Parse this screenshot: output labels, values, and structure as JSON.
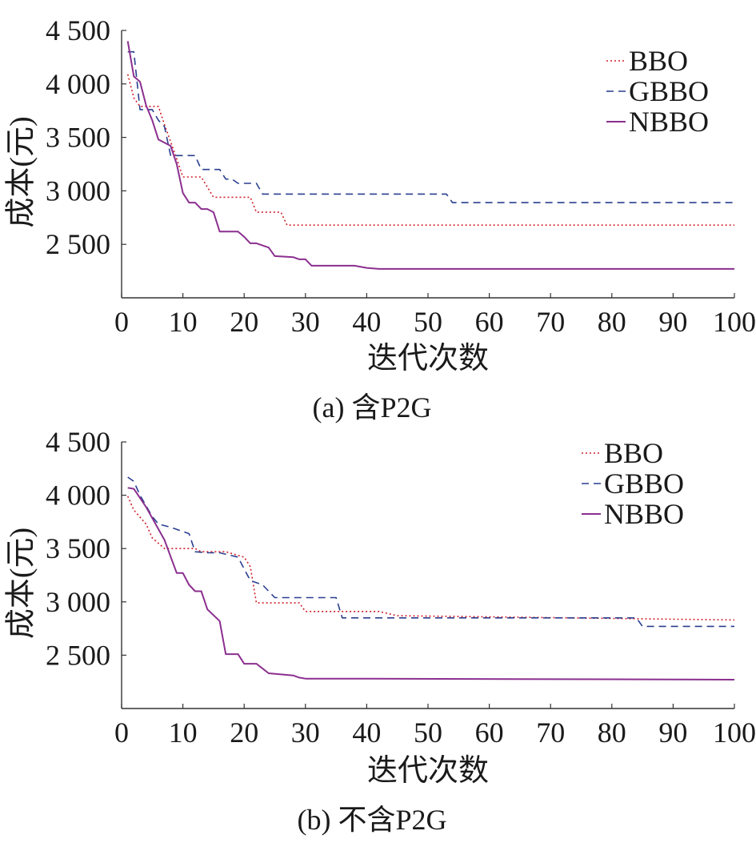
{
  "chart_data": [
    {
      "type": "line",
      "caption": "(a) 含P2G",
      "xlabel": "迭代次数",
      "ylabel": "成本(元)",
      "xlim": [
        0,
        100
      ],
      "ylim": [
        2000,
        4500
      ],
      "xticks": [
        0,
        10,
        20,
        30,
        40,
        50,
        60,
        70,
        80,
        90,
        100
      ],
      "xtick_labels": [
        "0",
        "10",
        "20",
        "30",
        "40",
        "50",
        "60",
        "70",
        "80",
        "90",
        "100"
      ],
      "yticks": [
        2500,
        3000,
        3500,
        4000,
        4500
      ],
      "ytick_labels": [
        "2 500",
        "3 000",
        "3 500",
        "4 000",
        "4 500"
      ],
      "legend_position": "top-right",
      "series": [
        {
          "name": "BBO",
          "color": "#d0202a",
          "dash": "dotted",
          "points": [
            [
              1,
              4090
            ],
            [
              2,
              3870
            ],
            [
              3,
              3790
            ],
            [
              6,
              3790
            ],
            [
              7,
              3620
            ],
            [
              9,
              3300
            ],
            [
              10,
              3130
            ],
            [
              13,
              3130
            ],
            [
              15,
              2940
            ],
            [
              21,
              2940
            ],
            [
              22,
              2800
            ],
            [
              26,
              2800
            ],
            [
              27,
              2680
            ],
            [
              100,
              2680
            ]
          ]
        },
        {
          "name": "GBBO",
          "color": "#2a3f8f",
          "dash": "dashed",
          "points": [
            [
              1,
              4300
            ],
            [
              2,
              4300
            ],
            [
              3,
              3760
            ],
            [
              5,
              3760
            ],
            [
              6,
              3660
            ],
            [
              7,
              3600
            ],
            [
              8,
              3330
            ],
            [
              12,
              3330
            ],
            [
              13,
              3200
            ],
            [
              16,
              3200
            ],
            [
              17,
              3110
            ],
            [
              18,
              3110
            ],
            [
              19,
              3070
            ],
            [
              22,
              3070
            ],
            [
              23,
              2970
            ],
            [
              53,
              2970
            ],
            [
              54,
              2890
            ],
            [
              100,
              2890
            ]
          ]
        },
        {
          "name": "NBBO",
          "color": "#8b2f8f",
          "dash": "solid",
          "points": [
            [
              1,
              4400
            ],
            [
              2,
              4070
            ],
            [
              3,
              4020
            ],
            [
              4,
              3800
            ],
            [
              5,
              3660
            ],
            [
              6,
              3480
            ],
            [
              8,
              3420
            ],
            [
              9,
              3250
            ],
            [
              10,
              2980
            ],
            [
              11,
              2890
            ],
            [
              12,
              2890
            ],
            [
              13,
              2830
            ],
            [
              14,
              2830
            ],
            [
              15,
              2800
            ],
            [
              16,
              2620
            ],
            [
              19,
              2620
            ],
            [
              20,
              2570
            ],
            [
              21,
              2510
            ],
            [
              22,
              2510
            ],
            [
              24,
              2470
            ],
            [
              25,
              2390
            ],
            [
              28,
              2380
            ],
            [
              29,
              2360
            ],
            [
              30,
              2360
            ],
            [
              31,
              2300
            ],
            [
              38,
              2300
            ],
            [
              40,
              2280
            ],
            [
              42,
              2270
            ],
            [
              100,
              2270
            ]
          ]
        }
      ]
    },
    {
      "type": "line",
      "caption": "(b) 不含P2G",
      "xlabel": "迭代次数",
      "ylabel": "成本(元)",
      "xlim": [
        0,
        100
      ],
      "ylim": [
        2000,
        4500
      ],
      "xticks": [
        0,
        10,
        20,
        30,
        40,
        50,
        60,
        70,
        80,
        90,
        100
      ],
      "xtick_labels": [
        "0",
        "10",
        "20",
        "30",
        "40",
        "50",
        "60",
        "70",
        "80",
        "90",
        "100"
      ],
      "yticks": [
        2500,
        3000,
        3500,
        4000,
        4500
      ],
      "ytick_labels": [
        "2 500",
        "3 000",
        "3 500",
        "4 000",
        "4 500"
      ],
      "legend_position": "top-right",
      "series": [
        {
          "name": "BBO",
          "color": "#d0202a",
          "dash": "dotted",
          "points": [
            [
              1,
              3990
            ],
            [
              2,
              3860
            ],
            [
              4,
              3730
            ],
            [
              5,
              3600
            ],
            [
              7,
              3500
            ],
            [
              12,
              3500
            ],
            [
              13,
              3470
            ],
            [
              17,
              3470
            ],
            [
              20,
              3420
            ],
            [
              21,
              3330
            ],
            [
              22,
              2990
            ],
            [
              29,
              2990
            ],
            [
              30,
              2910
            ],
            [
              42,
              2910
            ],
            [
              45,
              2870
            ],
            [
              100,
              2830
            ]
          ]
        },
        {
          "name": "GBBO",
          "color": "#2a3f8f",
          "dash": "dashed",
          "points": [
            [
              1,
              4170
            ],
            [
              2,
              4130
            ],
            [
              3,
              4000
            ],
            [
              5,
              3800
            ],
            [
              6,
              3730
            ],
            [
              8,
              3700
            ],
            [
              10,
              3660
            ],
            [
              11,
              3640
            ],
            [
              12,
              3470
            ],
            [
              14,
              3460
            ],
            [
              16,
              3460
            ],
            [
              19,
              3420
            ],
            [
              21,
              3200
            ],
            [
              23,
              3160
            ],
            [
              25,
              3040
            ],
            [
              35,
              3040
            ],
            [
              36,
              2850
            ],
            [
              84,
              2850
            ],
            [
              85,
              2770
            ],
            [
              100,
              2770
            ]
          ]
        },
        {
          "name": "NBBO",
          "color": "#8b2f8f",
          "dash": "solid",
          "points": [
            [
              1,
              4070
            ],
            [
              2,
              4060
            ],
            [
              4,
              3890
            ],
            [
              7,
              3580
            ],
            [
              9,
              3270
            ],
            [
              10,
              3270
            ],
            [
              11,
              3160
            ],
            [
              12,
              3100
            ],
            [
              13,
              3100
            ],
            [
              14,
              2930
            ],
            [
              16,
              2820
            ],
            [
              17,
              2510
            ],
            [
              19,
              2510
            ],
            [
              20,
              2420
            ],
            [
              22,
              2420
            ],
            [
              24,
              2330
            ],
            [
              28,
              2310
            ],
            [
              29,
              2290
            ],
            [
              30,
              2280
            ],
            [
              40,
              2280
            ],
            [
              100,
              2270
            ]
          ]
        }
      ]
    }
  ]
}
